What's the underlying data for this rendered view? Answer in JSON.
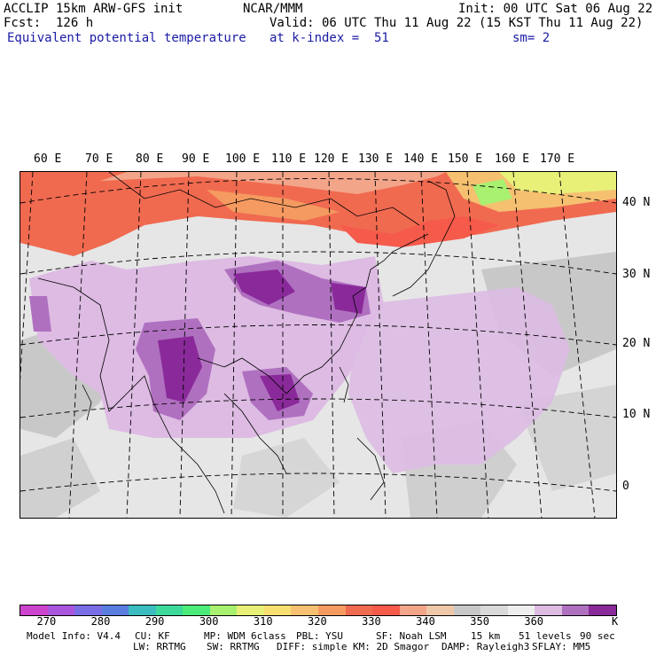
{
  "header": {
    "line1_left": "ACCLIP 15km ARW-GFS init",
    "line1_mid": "NCAR/MMM",
    "line1_right": "Init: 00 UTC Sat 06 Aug 22",
    "line2_left": "Fcst:  126 h",
    "line2_right": "Valid: 06 UTC Thu 11 Aug 22 (15 KST Thu 11 Aug 22)",
    "line3_left": "Equivalent potential temperature",
    "line3_mid": "at k-index =  51",
    "line3_right": "sm= 2"
  },
  "map": {
    "lon_labels": [
      "60 E",
      "70 E",
      "80 E",
      "90 E",
      "100 E",
      "110 E",
      "120 E",
      "130 E",
      "140 E",
      "150 E",
      "160 E",
      "170 E"
    ],
    "lat_labels": [
      "40 N",
      "30 N",
      "20 N",
      "10 N",
      "0"
    ]
  },
  "colorbar": {
    "colors": [
      "#cc44cc",
      "#aa55dd",
      "#7a6ee6",
      "#5a7de0",
      "#3bbcc0",
      "#3cd99a",
      "#4deb7a",
      "#a8f070",
      "#e8f078",
      "#f7e070",
      "#f5c070",
      "#f59a60",
      "#f06a50",
      "#f55a4a",
      "#f3a58a",
      "#eec8a8",
      "#c8c8c8",
      "#d9d9d9",
      "#eeeeee",
      "#ddbbe3",
      "#b070c0",
      "#8a2a9a"
    ],
    "ticks": [
      "270",
      "280",
      "290",
      "300",
      "310",
      "320",
      "330",
      "340",
      "350",
      "360"
    ],
    "unit": "K"
  },
  "footer": {
    "row1": [
      "Model Info: V4.4",
      "CU: KF",
      "MP: WDM 6class",
      "PBL: YSU",
      "SF: Noah LSM",
      "15 km",
      "51 levels",
      "90 sec"
    ],
    "row2": [
      "LW: RRTMG",
      "SW: RRTMG",
      "DIFF: simple",
      "KM: 2D Smagor",
      "DAMP: Rayleigh3",
      "SFLAY: MM5"
    ]
  }
}
